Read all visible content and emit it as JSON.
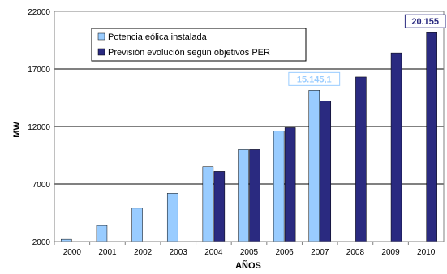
{
  "chart_data": {
    "type": "bar",
    "xlabel": "AÑOS",
    "ylabel": "MW",
    "ylim": [
      2000,
      22000
    ],
    "yticks": [
      "2000",
      "7000",
      "12000",
      "17000",
      "22000"
    ],
    "grid": true,
    "legend_position": "top-left",
    "categories": [
      "2000",
      "2001",
      "2002",
      "2003",
      "2004",
      "2005",
      "2006",
      "2007",
      "2008",
      "2009",
      "2010"
    ],
    "series": [
      {
        "name": "Potencia eólica instalada",
        "color": "#99ccff",
        "values": [
          2200,
          3400,
          4900,
          6200,
          8500,
          10000,
          11600,
          15145.1,
          null,
          null,
          null
        ]
      },
      {
        "name": "Previsión evolución según objetivos PER",
        "color": "#2a2a80",
        "values": [
          null,
          null,
          null,
          null,
          8100,
          10000,
          11900,
          14200,
          16300,
          18400,
          20155
        ]
      }
    ],
    "annotations": [
      {
        "text": "15.145,1",
        "color": "#99ccff",
        "series": 0,
        "category": "2007"
      },
      {
        "text": "20.155",
        "color": "#2a2a80",
        "series": 1,
        "category": "2010"
      }
    ]
  }
}
